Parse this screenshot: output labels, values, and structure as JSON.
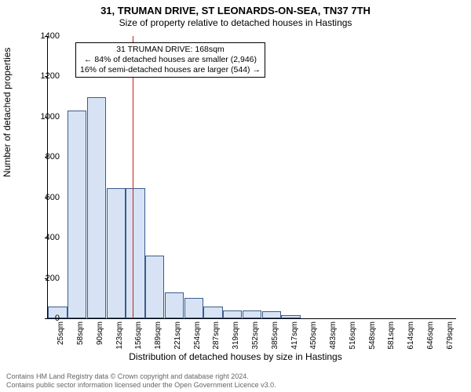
{
  "title_main": "31, TRUMAN DRIVE, ST LEONARDS-ON-SEA, TN37 7TH",
  "title_sub": "Size of property relative to detached houses in Hastings",
  "ylabel": "Number of detached properties",
  "xlabel": "Distribution of detached houses by size in Hastings",
  "footer_line1": "Contains HM Land Registry data © Crown copyright and database right 2024.",
  "footer_line2": "Contains public sector information licensed under the Open Government Licence v3.0.",
  "chart": {
    "type": "histogram",
    "ylim": [
      0,
      1400
    ],
    "ytick_step": 200,
    "bar_fill": "#d7e3f4",
    "bar_stroke": "#3b5b8c",
    "reference_line": {
      "x_value": 168,
      "color": "#c81e1e"
    },
    "background_color": "#ffffff",
    "categories": [
      "25sqm",
      "58sqm",
      "90sqm",
      "123sqm",
      "156sqm",
      "189sqm",
      "221sqm",
      "254sqm",
      "287sqm",
      "319sqm",
      "352sqm",
      "385sqm",
      "417sqm",
      "450sqm",
      "483sqm",
      "516sqm",
      "548sqm",
      "581sqm",
      "614sqm",
      "646sqm",
      "679sqm"
    ],
    "values": [
      60,
      1030,
      1095,
      645,
      645,
      310,
      130,
      100,
      60,
      40,
      40,
      35,
      15,
      0,
      0,
      0,
      0,
      0,
      0,
      0,
      0
    ]
  },
  "info_box": {
    "line1": "31 TRUMAN DRIVE: 168sqm",
    "line2": "← 84% of detached houses are smaller (2,946)",
    "line3": "16% of semi-detached houses are larger (544) →"
  }
}
